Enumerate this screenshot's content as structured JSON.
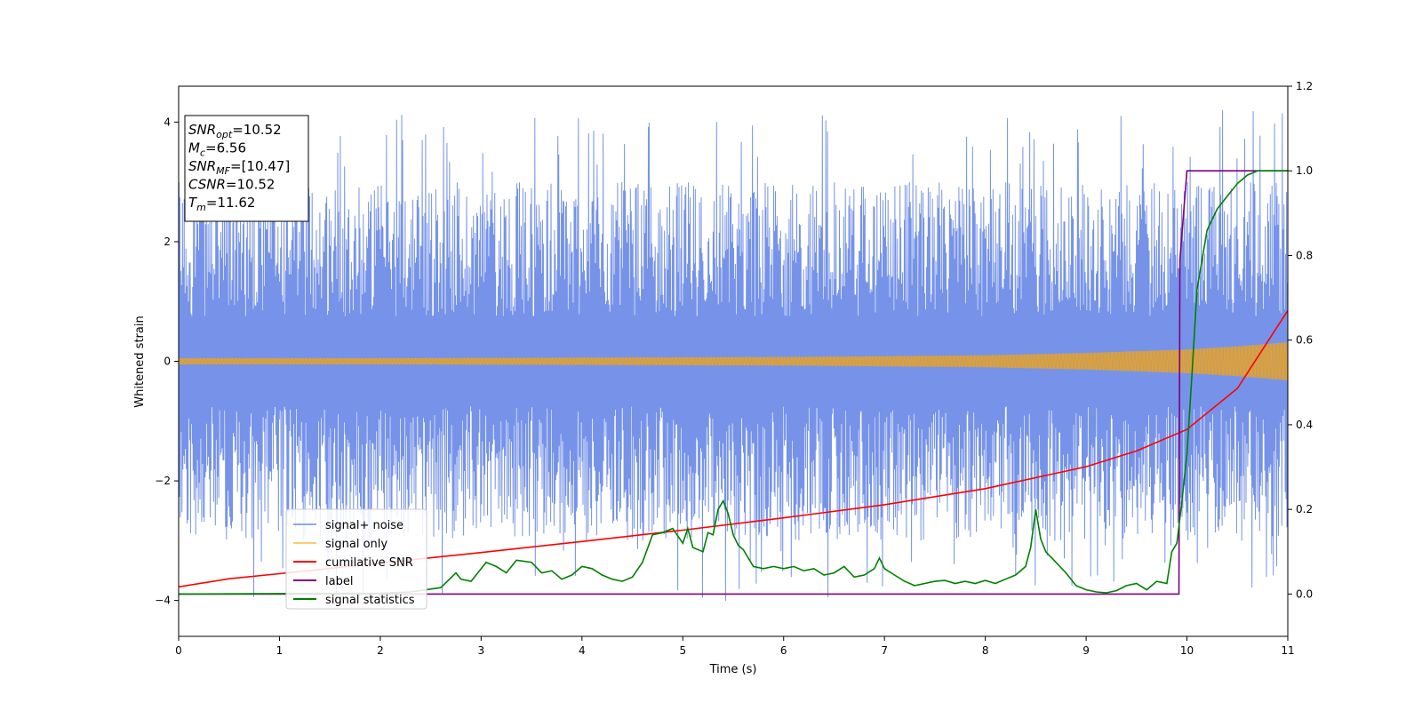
{
  "chart_data": {
    "type": "line",
    "xlabel": "Time (s)",
    "ylabel": "Whitened strain",
    "xlim": [
      0,
      11
    ],
    "ylim": [
      -4.6,
      4.6
    ],
    "y2lim": [
      -0.1,
      1.2
    ],
    "x_ticks": [
      "0",
      "1",
      "2",
      "3",
      "4",
      "5",
      "6",
      "7",
      "8",
      "9",
      "10",
      "11"
    ],
    "y_ticks": [
      "−4",
      "−2",
      "0",
      "2",
      "4"
    ],
    "y_tick_values": [
      -4,
      -2,
      0,
      2,
      4
    ],
    "y2_ticks": [
      "0.0",
      "0.2",
      "0.4",
      "0.6",
      "0.8",
      "1.0",
      "1.2"
    ],
    "y2_tick_values": [
      0,
      0.2,
      0.4,
      0.6,
      0.8,
      1.0,
      1.2
    ],
    "grid": false,
    "legend_position": "lower-left",
    "annotation": [
      {
        "symbol": "SNR",
        "sub": "opt",
        "value": "=10.52"
      },
      {
        "symbol": "M",
        "sub": "c",
        "value": "=6.56"
      },
      {
        "symbol": "SNR",
        "sub": "MF",
        "value": "=[10.47]"
      },
      {
        "symbol": "CSNR",
        "sub": "",
        "value": "=10.52"
      },
      {
        "symbol": "T",
        "sub": "m",
        "value": "=11.62"
      }
    ],
    "series": [
      {
        "name": "signal+ noise",
        "color": "#4169e1",
        "axis": "left",
        "noise_envelope": {
          "x": [
            0,
            2,
            4,
            6,
            8,
            10,
            11
          ],
          "max": [
            3.0,
            3.0,
            3.0,
            3.0,
            3.0,
            3.0,
            3.0
          ],
          "min": [
            -3.0,
            -3.0,
            -3.0,
            -3.0,
            -3.0,
            -3.0,
            -3.0
          ],
          "spike_max": 4.2,
          "spike_min": -4.1
        }
      },
      {
        "name": "signal only",
        "color": "#ffa500",
        "axis": "left",
        "amplitude": {
          "x": [
            0,
            2,
            4,
            6,
            8,
            9,
            10,
            10.5,
            11
          ],
          "y": [
            0.05,
            0.05,
            0.06,
            0.07,
            0.1,
            0.14,
            0.2,
            0.25,
            0.32
          ]
        }
      },
      {
        "name": "cumilative SNR",
        "color": "#ff0000",
        "axis": "right",
        "x": [
          0,
          0.5,
          1,
          2,
          3,
          4,
          5,
          6,
          7,
          8,
          9,
          9.5,
          10,
          10.5,
          11
        ],
        "y": [
          0.017,
          0.036,
          0.048,
          0.073,
          0.098,
          0.124,
          0.151,
          0.18,
          0.211,
          0.249,
          0.301,
          0.338,
          0.389,
          0.486,
          0.67
        ]
      },
      {
        "name": "label",
        "color": "#800080",
        "axis": "right",
        "x": [
          0,
          9.92,
          9.93,
          10.0,
          11
        ],
        "y": [
          0,
          0,
          0.79,
          1.0,
          1.0
        ]
      },
      {
        "name": "signal statistics",
        "color": "#008000",
        "axis": "right",
        "x": [
          0,
          1,
          2,
          2.3,
          2.6,
          2.75,
          2.8,
          2.9,
          2.95,
          3.05,
          3.15,
          3.25,
          3.35,
          3.5,
          3.6,
          3.7,
          3.8,
          3.9,
          4.0,
          4.1,
          4.2,
          4.3,
          4.4,
          4.5,
          4.6,
          4.7,
          4.8,
          4.9,
          5.0,
          5.05,
          5.1,
          5.2,
          5.25,
          5.3,
          5.35,
          5.4,
          5.45,
          5.5,
          5.55,
          5.6,
          5.7,
          5.8,
          5.9,
          6.0,
          6.1,
          6.2,
          6.3,
          6.4,
          6.5,
          6.6,
          6.7,
          6.8,
          6.9,
          6.95,
          7.0,
          7.1,
          7.2,
          7.3,
          7.4,
          7.5,
          7.6,
          7.7,
          7.8,
          7.9,
          8.0,
          8.1,
          8.2,
          8.3,
          8.4,
          8.45,
          8.5,
          8.55,
          8.6,
          8.7,
          8.8,
          8.9,
          9.0,
          9.1,
          9.2,
          9.3,
          9.4,
          9.5,
          9.6,
          9.7,
          9.8,
          9.85,
          9.9,
          9.95,
          10.0,
          10.05,
          10.1,
          10.2,
          10.3,
          10.4,
          10.5,
          10.6,
          10.7,
          10.8,
          10.9,
          11.0
        ],
        "y": [
          0,
          0.001,
          0.002,
          0.005,
          0.015,
          0.05,
          0.035,
          0.03,
          0.045,
          0.075,
          0.065,
          0.05,
          0.08,
          0.075,
          0.05,
          0.055,
          0.035,
          0.045,
          0.065,
          0.06,
          0.045,
          0.035,
          0.03,
          0.04,
          0.075,
          0.14,
          0.145,
          0.155,
          0.12,
          0.155,
          0.11,
          0.1,
          0.145,
          0.14,
          0.2,
          0.22,
          0.19,
          0.14,
          0.115,
          0.105,
          0.065,
          0.06,
          0.065,
          0.06,
          0.065,
          0.055,
          0.06,
          0.045,
          0.05,
          0.065,
          0.04,
          0.045,
          0.06,
          0.085,
          0.06,
          0.045,
          0.03,
          0.02,
          0.025,
          0.03,
          0.032,
          0.025,
          0.03,
          0.025,
          0.032,
          0.025,
          0.035,
          0.045,
          0.065,
          0.11,
          0.2,
          0.13,
          0.1,
          0.075,
          0.05,
          0.02,
          0.01,
          0.005,
          0.003,
          0.008,
          0.02,
          0.025,
          0.01,
          0.03,
          0.025,
          0.1,
          0.12,
          0.22,
          0.33,
          0.52,
          0.72,
          0.86,
          0.91,
          0.94,
          0.97,
          0.99,
          1.0,
          1.0,
          1.0,
          1.0
        ]
      }
    ]
  }
}
